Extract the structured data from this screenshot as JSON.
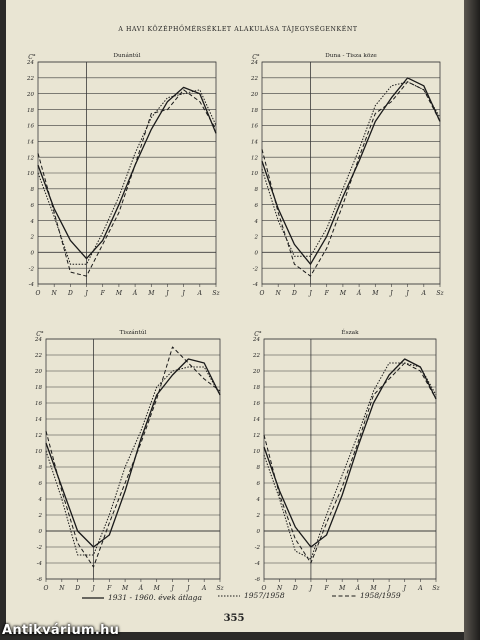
{
  "page_title": "A HAVI KÖZÉPHŐMÉRSÉKLET ALAKULÁSA TÁJEGYSÉGENKÉNT",
  "page_number": "355",
  "watermark": "Antikvárium.hu",
  "legend": {
    "avg": "1931 - 1960. évek átlaga",
    "y1957": "1957/1958",
    "y1958": "1958/1959"
  },
  "colors": {
    "line": "#1a1a1a",
    "grid": "#3a3a3a",
    "paper": "#e9e5d3"
  },
  "chart_data": [
    {
      "type": "line",
      "title": "Dunántúl",
      "ylabel": "C°",
      "categories": [
        "O",
        "N",
        "D",
        "J",
        "F",
        "M",
        "Á",
        "M",
        "J",
        "J",
        "A",
        "Sz"
      ],
      "yticks": [
        -4,
        -2,
        0,
        2,
        4,
        6,
        8,
        10,
        12,
        14,
        16,
        18,
        20,
        22,
        24
      ],
      "ylim": [
        -4,
        24
      ],
      "series": [
        {
          "style": "solid",
          "values": [
            11,
            5.5,
            1.5,
            -0.8,
            1.5,
            6,
            11,
            15.5,
            19,
            20.8,
            20,
            15
          ]
        },
        {
          "style": "dashed",
          "values": [
            12.5,
            5,
            -2.5,
            -3,
            1,
            5,
            11,
            17.5,
            18,
            20.5,
            19,
            15.5
          ]
        },
        {
          "style": "dotted",
          "values": [
            10,
            4.5,
            -1.5,
            -1.5,
            2.5,
            7,
            12.5,
            17,
            19.5,
            20,
            20.5,
            16
          ]
        }
      ]
    },
    {
      "type": "line",
      "title": "Duna - Tisza köze",
      "ylabel": "C°",
      "categories": [
        "O",
        "N",
        "D",
        "J",
        "F",
        "M",
        "Á",
        "M",
        "J",
        "J",
        "A",
        "Sz"
      ],
      "yticks": [
        -4,
        -2,
        0,
        2,
        4,
        6,
        8,
        10,
        12,
        14,
        16,
        18,
        20,
        22,
        24
      ],
      "ylim": [
        -4,
        24
      ],
      "series": [
        {
          "style": "solid",
          "values": [
            11.5,
            5.5,
            1,
            -1.5,
            2,
            7,
            11.5,
            16.5,
            19.5,
            22,
            21,
            16.5
          ]
        },
        {
          "style": "dashed",
          "values": [
            13,
            5,
            -1.5,
            -3,
            0.5,
            6,
            12,
            17.5,
            19,
            21.5,
            20.5,
            16.5
          ]
        },
        {
          "style": "dotted",
          "values": [
            10.5,
            4,
            -0.5,
            -0.5,
            3,
            8,
            13,
            18.5,
            21,
            21.5,
            20.5,
            17
          ]
        }
      ]
    },
    {
      "type": "line",
      "title": "Tiszántúl",
      "ylabel": "C°",
      "categories": [
        "O",
        "N",
        "D",
        "J",
        "F",
        "M",
        "Á",
        "M",
        "J",
        "J",
        "A",
        "Sz"
      ],
      "yticks": [
        -6,
        -4,
        -2,
        0,
        2,
        4,
        6,
        8,
        10,
        12,
        14,
        16,
        18,
        20,
        22,
        24
      ],
      "ylim": [
        -6,
        24
      ],
      "series": [
        {
          "style": "solid",
          "values": [
            11,
            5.5,
            0,
            -2,
            -0.5,
            5,
            11.5,
            17,
            19.5,
            21.5,
            21,
            17
          ]
        },
        {
          "style": "dashed",
          "values": [
            12.5,
            5,
            -1.5,
            -4.5,
            1,
            6,
            11,
            16.5,
            23,
            21,
            19,
            17.5
          ]
        },
        {
          "style": "dotted",
          "values": [
            10,
            4,
            -3,
            -3,
            2,
            8,
            12.5,
            18,
            20,
            20.5,
            20.5,
            17
          ]
        }
      ]
    },
    {
      "type": "line",
      "title": "Észak",
      "ylabel": "C°",
      "categories": [
        "O",
        "N",
        "D",
        "J",
        "F",
        "M",
        "Á",
        "M",
        "J",
        "J",
        "A",
        "Sz"
      ],
      "yticks": [
        -6,
        -4,
        -2,
        0,
        2,
        4,
        6,
        8,
        10,
        12,
        14,
        16,
        18,
        20,
        22,
        24
      ],
      "ylim": [
        -6,
        24
      ],
      "series": [
        {
          "style": "solid",
          "values": [
            10.5,
            5,
            0.5,
            -2,
            -0.5,
            4.5,
            10.5,
            16,
            19.5,
            21.5,
            20.5,
            16.5
          ]
        },
        {
          "style": "dashed",
          "values": [
            12,
            4.5,
            -1,
            -4,
            1,
            5.5,
            11,
            17,
            19,
            21,
            20,
            16.5
          ]
        },
        {
          "style": "dotted",
          "values": [
            9.5,
            4,
            -2.5,
            -3.5,
            2,
            7,
            12,
            17.5,
            21,
            21,
            20.5,
            17
          ]
        }
      ]
    }
  ]
}
